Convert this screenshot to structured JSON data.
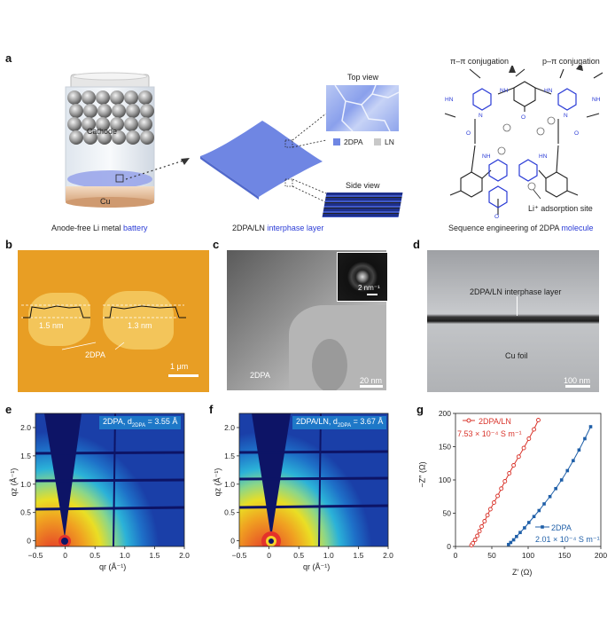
{
  "panel_a": {
    "label": "a",
    "battery": {
      "cathode": "Cathode",
      "cu": "Cu",
      "caption_prefix": "Anode-free Li metal ",
      "caption_blue": "battery"
    },
    "layer": {
      "caption_prefix": "2DPA/LN ",
      "caption_blue": "interphase layer",
      "top_view": "Top view",
      "side_view": "Side view",
      "legend_2dpa": "2DPA",
      "legend_ln": "LN"
    },
    "molecule": {
      "pi_pi": "π–π conjugation",
      "p_pi": "p–π conjugation",
      "li_site": "Li⁺ adsorption site",
      "caption_prefix": "Sequence engineering of 2DPA ",
      "caption_blue": "molecule",
      "nh": "NH",
      "hn": "HN",
      "o": "O",
      "n": "N"
    }
  },
  "panel_b": {
    "label": "b",
    "h1": "1.5 nm",
    "h2": "1.3 nm",
    "name": "2DPA",
    "scale": "1 μm"
  },
  "panel_c": {
    "label": "c",
    "fft_scale": "2 nm⁻¹",
    "name": "2DPA",
    "scale": "20 nm"
  },
  "panel_d": {
    "label": "d",
    "layer": "2DPA/LN interphase layer",
    "foil": "Cu foil",
    "scale": "100 nm"
  },
  "panel_e": {
    "label": "e",
    "title": "2DPA, d",
    "sub": "2DPA",
    "value": " = 3.55 Å",
    "xticks": [
      "−0.5",
      "0",
      "0.5",
      "1.0",
      "1.5",
      "2.0"
    ],
    "yticks": [
      "0",
      "0.5",
      "1.0",
      "1.5",
      "2.0"
    ],
    "xlabel": "qr (Å⁻¹)",
    "ylabel": "qz (Å⁻¹)"
  },
  "panel_f": {
    "label": "f",
    "title": "2DPA/LN, d",
    "sub": "2DPA",
    "value": " = 3.67 Å",
    "xticks": [
      "−0.5",
      "0",
      "0.5",
      "1.0",
      "1.5",
      "2.0"
    ],
    "yticks": [
      "0",
      "0.5",
      "1.0",
      "1.5",
      "2.0"
    ],
    "xlabel": "qr (Å⁻¹)",
    "ylabel": "qz (Å⁻¹)"
  },
  "panel_g": {
    "label": "g",
    "xlabel": "Z′ (Ω)",
    "ylabel": "−Z″ (Ω)",
    "xticks": [
      "0",
      "50",
      "100",
      "150",
      "200"
    ],
    "yticks": [
      "0",
      "50",
      "100",
      "150",
      "200"
    ],
    "s1_name": "2DPA/LN",
    "s1_cond": "7.53 × 10⁻⁴ S m⁻¹",
    "s2_name": "2DPA",
    "s2_cond": "2.01 × 10⁻⁴ S m⁻¹"
  },
  "chart_data": {
    "type": "scatter",
    "xlabel": "Z′ (Ω)",
    "ylabel": "−Z″ (Ω)",
    "xlim": [
      0,
      200
    ],
    "ylim": [
      0,
      200
    ],
    "colors": {
      "2DPA/LN": "#d9342b",
      "2DPA": "#1f5fa8"
    },
    "series": [
      {
        "name": "2DPA/LN",
        "conductivity": "7.53 × 10⁻⁴ S m⁻¹",
        "x": [
          22,
          24,
          27,
          30,
          33,
          36,
          40,
          44,
          48,
          53,
          58,
          63,
          68,
          74,
          80,
          87,
          94,
          101,
          108,
          114
        ],
        "y": [
          2,
          5,
          10,
          16,
          23,
          30,
          38,
          47,
          56,
          66,
          76,
          87,
          98,
          110,
          122,
          135,
          148,
          162,
          176,
          190
        ]
      },
      {
        "name": "2DPA",
        "conductivity": "2.01 × 10⁻⁴ S m⁻¹",
        "x": [
          73,
          76,
          80,
          84,
          89,
          95,
          101,
          108,
          115,
          122,
          130,
          138,
          146,
          154,
          162,
          170,
          178,
          186
        ],
        "y": [
          3,
          6,
          10,
          15,
          21,
          28,
          36,
          45,
          54,
          64,
          75,
          87,
          100,
          114,
          129,
          145,
          162,
          180
        ]
      }
    ]
  }
}
